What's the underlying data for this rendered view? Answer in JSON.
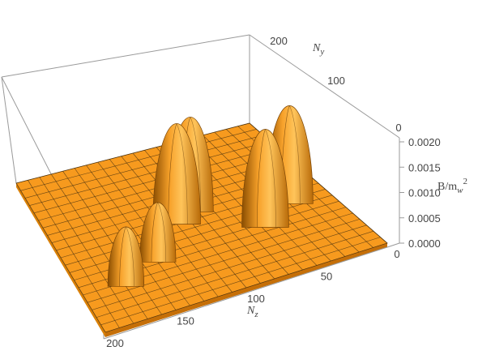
{
  "chart_data": {
    "type": "surface3d",
    "title": "",
    "axes": {
      "x": {
        "label_main": "N",
        "label_sub": "z",
        "range": [
          0,
          200
        ],
        "ticks": [
          "0",
          "50",
          "100",
          "150",
          "200"
        ]
      },
      "y": {
        "label_main": "N",
        "label_sub": "y",
        "range": [
          0,
          200
        ],
        "ticks": [
          "0",
          "100",
          "200"
        ]
      },
      "z": {
        "label_main": "B/m",
        "label_sub": "w",
        "label_sup": "2",
        "range": [
          0,
          0.002
        ],
        "ticks": [
          "0.0000",
          "0.0005",
          "0.0010",
          "0.0015",
          "0.0020"
        ]
      }
    },
    "peaks": [
      {
        "nz": 170,
        "ny": 45,
        "height": 0.00113
      },
      {
        "nz": 140,
        "ny": 62,
        "height": 0.00113
      },
      {
        "nz": 110,
        "ny": 100,
        "height": 0.00191
      },
      {
        "nz": 95,
        "ny": 110,
        "height": 0.0018
      },
      {
        "nz": 58,
        "ny": 65,
        "height": 0.00186
      },
      {
        "nz": 30,
        "ny": 85,
        "height": 0.00186
      }
    ],
    "surface_color": "#f79a1e",
    "mesh_color": "#3a2a10",
    "box_color": "#9a9a9a"
  }
}
